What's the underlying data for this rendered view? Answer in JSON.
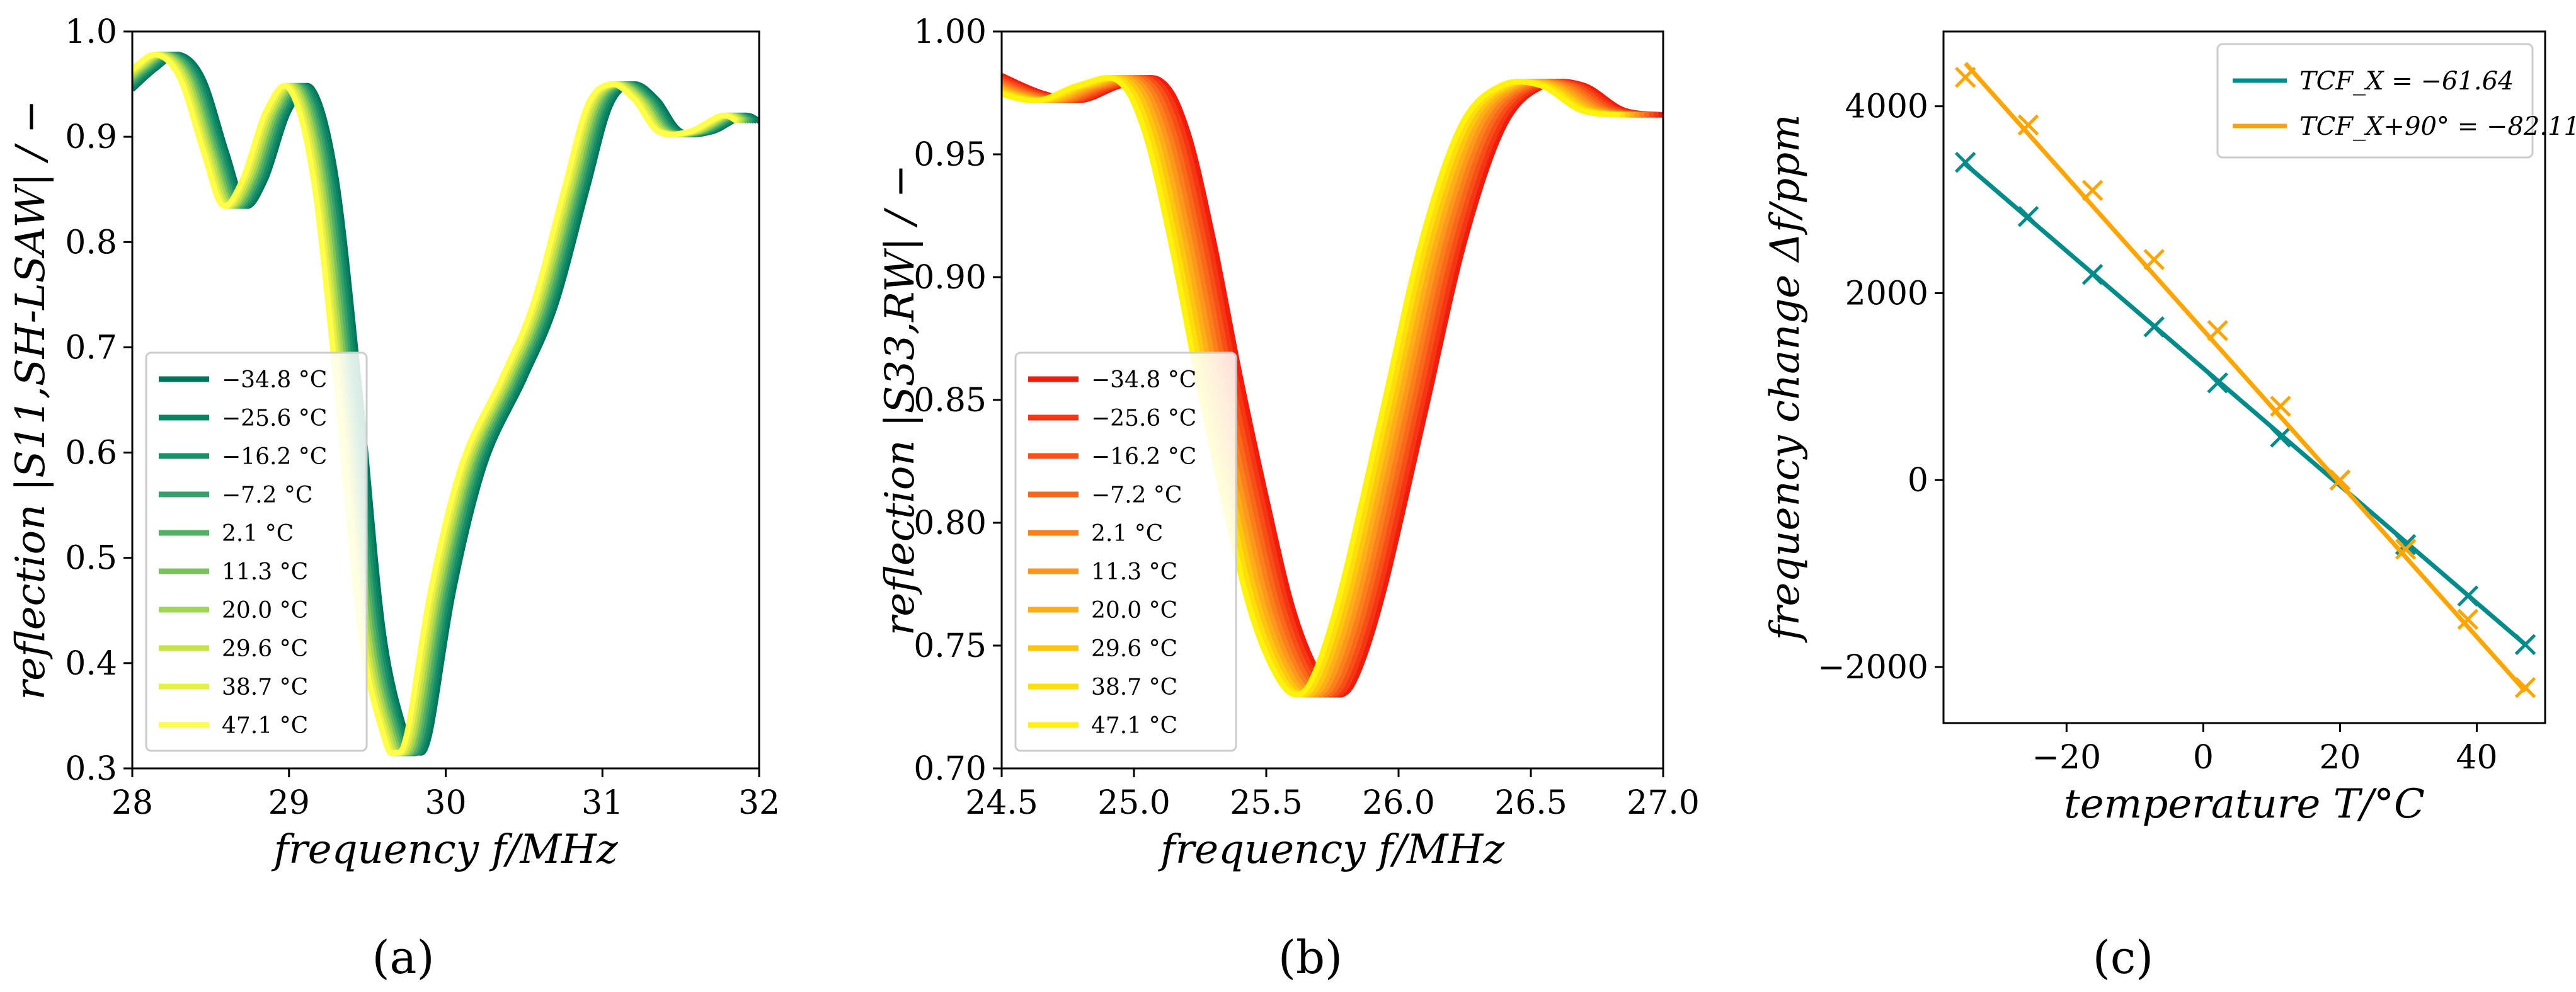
{
  "temperatures": [
    "−34.8 °C",
    "−25.6 °C",
    "−16.2 °C",
    "−7.2 °C",
    "2.1 °C",
    "11.3 °C",
    "20.0 °C",
    "29.6 °C",
    "38.7 °C",
    "47.1 °C"
  ],
  "chart_data": [
    {
      "id": "a",
      "panel_label": "(a)",
      "type": "line",
      "xlabel": "frequency  f/MHz",
      "ylabel": "reflection  |S11,SH-LSAW| / −",
      "xlim": [
        28,
        32
      ],
      "ylim": [
        0.3,
        1.0
      ],
      "xticks": [
        "28",
        "29",
        "30",
        "31",
        "32"
      ],
      "yticks": [
        "0.3",
        "0.4",
        "0.5",
        "0.6",
        "0.7",
        "0.8",
        "0.9",
        "1.0"
      ],
      "legend_position": "lower-left",
      "colors": [
        "#00755e",
        "#0c8462",
        "#1a9068",
        "#33a06e",
        "#55b063",
        "#7ac35c",
        "#a1d555",
        "#c8e24a",
        "#e6ef45",
        "#ffff4a"
      ],
      "series_shift_mhz": [
        0.0,
        -0.016,
        -0.032,
        -0.048,
        -0.064,
        -0.08,
        -0.096,
        -0.112,
        -0.128,
        -0.144
      ],
      "base_curve": {
        "x": [
          28.0,
          28.15,
          28.3,
          28.45,
          28.6,
          28.72,
          28.85,
          29.0,
          29.15,
          29.3,
          29.45,
          29.6,
          29.75,
          29.82,
          29.9,
          30.05,
          30.25,
          30.5,
          30.7,
          30.9,
          31.05,
          31.2,
          31.35,
          31.5,
          31.7,
          31.9,
          32.0
        ],
        "y": [
          0.945,
          0.965,
          0.978,
          0.955,
          0.885,
          0.835,
          0.86,
          0.925,
          0.945,
          0.86,
          0.66,
          0.43,
          0.33,
          0.315,
          0.335,
          0.47,
          0.59,
          0.67,
          0.74,
          0.85,
          0.93,
          0.95,
          0.935,
          0.905,
          0.905,
          0.92,
          0.915
        ]
      }
    },
    {
      "id": "b",
      "panel_label": "(b)",
      "type": "line",
      "xlabel": "frequency  f/MHz",
      "ylabel": "reflection  |S33,RW| / −",
      "xlim": [
        24.5,
        27.0
      ],
      "ylim": [
        0.7,
        1.0
      ],
      "xticks": [
        "24.5",
        "25.0",
        "25.5",
        "26.0",
        "26.5",
        "27.0"
      ],
      "yticks": [
        "0.70",
        "0.75",
        "0.80",
        "0.85",
        "0.90",
        "0.95",
        "1.00"
      ],
      "legend_position": "lower-left",
      "colors": [
        "#f21c0c",
        "#f53514",
        "#f74f17",
        "#f9681b",
        "#fb7f1d",
        "#fd981c",
        "#ffae19",
        "#ffc60f",
        "#ffde0c",
        "#fff20c"
      ],
      "series_shift_mhz": [
        0.0,
        -0.018,
        -0.036,
        -0.054,
        -0.072,
        -0.09,
        -0.108,
        -0.126,
        -0.144,
        -0.162
      ],
      "base_curve": {
        "x": [
          24.5,
          24.65,
          24.8,
          24.95,
          25.1,
          25.2,
          25.3,
          25.4,
          25.5,
          25.6,
          25.7,
          25.78,
          25.85,
          25.95,
          26.1,
          26.25,
          26.4,
          26.55,
          26.7,
          26.85,
          27.0
        ],
        "y": [
          0.982,
          0.975,
          0.972,
          0.978,
          0.98,
          0.96,
          0.915,
          0.86,
          0.81,
          0.765,
          0.738,
          0.73,
          0.74,
          0.775,
          0.845,
          0.915,
          0.962,
          0.978,
          0.978,
          0.968,
          0.966
        ]
      }
    },
    {
      "id": "c",
      "panel_label": "(c)",
      "type": "line",
      "xlabel": "temperature  T/°C",
      "ylabel": "frequency change  Δf/ppm",
      "xlim": [
        -38,
        50
      ],
      "ylim": [
        -2600,
        4800
      ],
      "xticks": [
        -20,
        0,
        20,
        40
      ],
      "yticks": [
        -2000,
        0,
        2000,
        4000
      ],
      "legend_position": "top-right",
      "x": [
        -34.8,
        -25.6,
        -16.2,
        -7.2,
        2.1,
        11.3,
        20.0,
        29.6,
        38.7,
        47.1
      ],
      "series": [
        {
          "name": "TCF_X = −61.64",
          "color": "#008b8b",
          "fit_line": [
            [
              -34.8,
              3380
            ],
            [
              47.1,
              -1760
            ]
          ],
          "values": [
            3400,
            2820,
            2200,
            1640,
            1040,
            460,
            0,
            -690,
            -1240,
            -1760
          ]
        },
        {
          "name": "TCF_X+90° = −82.11",
          "color": "#ffa500",
          "fit_line": [
            [
              -34.8,
              4460
            ],
            [
              47.1,
              -2260
            ]
          ],
          "values": [
            4310,
            3800,
            3100,
            2360,
            1600,
            790,
            0,
            -740,
            -1490,
            -2220
          ]
        }
      ]
    }
  ]
}
